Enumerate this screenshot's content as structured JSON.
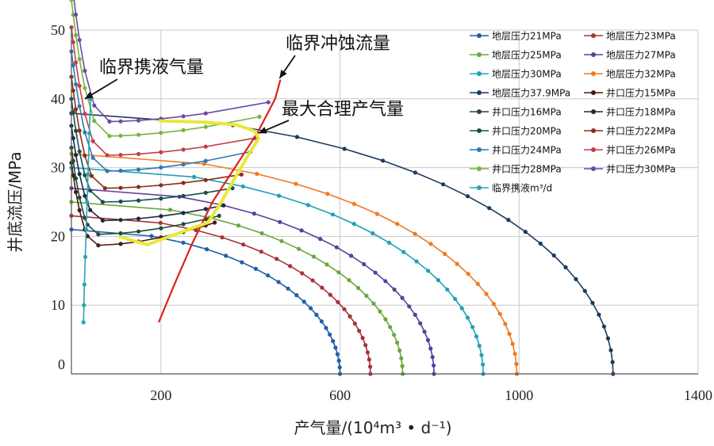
{
  "chart_data": {
    "type": "line",
    "xlabel": "产气量/(10⁴m³ • d⁻¹)",
    "ylabel": "井底流压/MPa",
    "xlim": [
      0,
      1400
    ],
    "ylim": [
      0,
      50
    ],
    "x_ticks": [
      200,
      600,
      1000,
      1400
    ],
    "x_tick_labels": [
      "200",
      "600",
      "1000",
      "1400"
    ],
    "y_ticks": [
      0,
      10,
      20,
      30,
      40,
      50
    ],
    "y_tick_labels": [
      "0",
      "10",
      "20",
      "30",
      "40",
      "50"
    ],
    "grid": true,
    "legend_position": "top-right",
    "annotations": [
      {
        "text": "临界携液气量",
        "target": [
          30,
          40
        ]
      },
      {
        "text": "临界冲蚀流量",
        "target": [
          465,
          43
        ]
      },
      {
        "text": "最大合理产气量",
        "target": [
          418,
          35
        ]
      }
    ],
    "series": [
      {
        "name": "地层压力21MPa",
        "kind": "ipr",
        "p": 21,
        "qmax": 600,
        "color": "#1f5fa8"
      },
      {
        "name": "地层压力23MPa",
        "kind": "ipr",
        "p": 23,
        "qmax": 668,
        "color": "#a8323a"
      },
      {
        "name": "地层压力25MPa",
        "kind": "ipr",
        "p": 25,
        "qmax": 740,
        "color": "#6aa83c"
      },
      {
        "name": "地层压力27MPa",
        "kind": "ipr",
        "p": 27,
        "qmax": 810,
        "color": "#5a3f99"
      },
      {
        "name": "地层压力30MPa",
        "kind": "ipr",
        "p": 30,
        "qmax": 920,
        "color": "#1fa0b8"
      },
      {
        "name": "地层压力32MPa",
        "kind": "ipr",
        "p": 32,
        "qmax": 995,
        "color": "#ef7a22"
      },
      {
        "name": "地层压力37.9MPa",
        "kind": "ipr",
        "p": 37.9,
        "qmax": 1210,
        "color": "#1c3a5e"
      },
      {
        "name": "井口压力15MPa",
        "kind": "tpr",
        "pw": 15,
        "pmin": 18.7,
        "qmin": 60,
        "qend": 320,
        "pend": 22,
        "color": "#4a1a10"
      },
      {
        "name": "井口压力16MPa",
        "kind": "tpr",
        "pw": 16,
        "pmin": 20.3,
        "qmin": 60,
        "qend": 330,
        "pend": 23,
        "color": "#1f4a3a"
      },
      {
        "name": "井口压力18MPa",
        "kind": "tpr",
        "pw": 18,
        "pmin": 22.3,
        "qmin": 70,
        "qend": 340,
        "pend": 24.5,
        "color": "#1c2a3f"
      },
      {
        "name": "井口压力20MPa",
        "kind": "tpr",
        "pw": 20,
        "pmin": 25.0,
        "qmin": 70,
        "qend": 360,
        "pend": 27,
        "color": "#145050"
      },
      {
        "name": "井口压力22MPa",
        "kind": "tpr",
        "pw": 22,
        "pmin": 27.0,
        "qmin": 75,
        "qend": 380,
        "pend": 29,
        "color": "#8a2e18"
      },
      {
        "name": "井口压力24MPa",
        "kind": "tpr",
        "pw": 24,
        "pmin": 29.5,
        "qmin": 80,
        "qend": 400,
        "pend": 32.3,
        "color": "#2b79b3"
      },
      {
        "name": "井口压力26MPa",
        "kind": "tpr",
        "pw": 26,
        "pmin": 31.8,
        "qmin": 80,
        "qend": 410,
        "pend": 34.3,
        "color": "#c0404a"
      },
      {
        "name": "井口压力28MPa",
        "kind": "tpr",
        "pw": 28,
        "pmin": 34.6,
        "qmin": 85,
        "qend": 420,
        "pend": 37.4,
        "color": "#78b43e"
      },
      {
        "name": "井口压力30MPa",
        "kind": "tpr",
        "pw": 30,
        "pmin": 36.7,
        "qmin": 85,
        "qend": 440,
        "pend": 39.5,
        "color": "#6b4aa8"
      },
      {
        "name": "临界携液m³/d",
        "kind": "critical",
        "color": "#2aa3b5",
        "x": [
          27,
          28,
          29,
          31,
          33,
          35,
          37,
          40,
          43
        ],
        "y": [
          7.5,
          10,
          13,
          17,
          21,
          25,
          29,
          35,
          40
        ]
      }
    ],
    "extra_lines": [
      {
        "name": "临界冲蚀流量",
        "color": "#e02020",
        "x": [
          195,
          230,
          270,
          315,
          365,
          415,
          455,
          467
        ],
        "y": [
          7.5,
          13,
          19,
          25,
          30,
          35,
          40,
          42.8
        ]
      },
      {
        "name": "最大合理产气量",
        "color": "#e8e83a",
        "x": [
          105,
          170,
          240,
          305,
          335,
          365,
          395,
          418,
          410,
          370,
          300,
          250,
          195
        ],
        "y": [
          20,
          18.8,
          20.5,
          22,
          25,
          28.5,
          31.8,
          34.2,
          35.3,
          36.2,
          36.6,
          36.7,
          36.8
        ]
      }
    ]
  }
}
